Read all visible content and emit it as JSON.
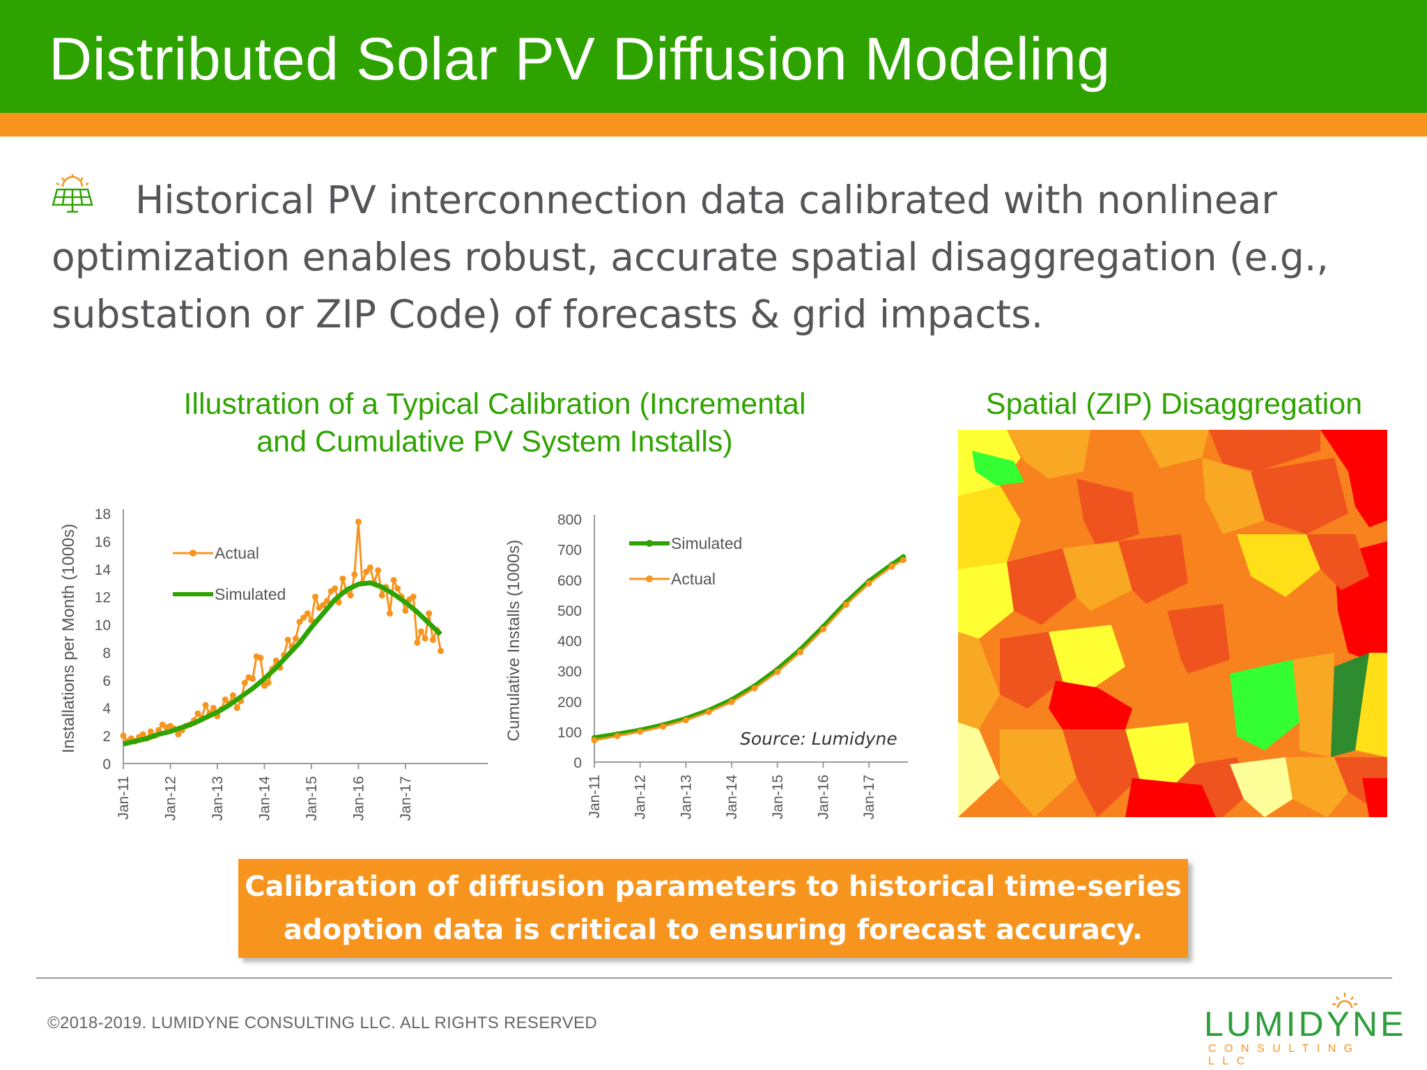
{
  "slide": {
    "title": "Distributed Solar PV Diffusion Modeling",
    "intro_text": "Historical PV interconnection data calibrated with nonlinear optimization enables robust, accurate spatial disaggregation (e.g., substation or ZIP Code) of forecasts & grid impacts.",
    "bullet_icon": "solar-panel-icon",
    "colors": {
      "title_bar": "#2ea300",
      "accent_orange": "#f7941d",
      "text_gray": "#555559",
      "heading_green": "#2ea300"
    }
  },
  "left_heading": {
    "line1": "Illustration of a Typical Calibration (Incremental",
    "line2": "and Cumulative PV System Installs)"
  },
  "right_heading": "Spatial (ZIP) Disaggregation",
  "source_note": "Source: Lumidyne",
  "callout": {
    "line1": "Calibration of diffusion parameters to historical time-series",
    "line2": "adoption data is critical to ensuring forecast accuracy."
  },
  "footer": {
    "copyright": "©2018-2019. LUMIDYNE CONSULTING LLC. ALL RIGHTS RESERVED",
    "logo_word": "LUMIDYNE",
    "logo_sub": "CONSULTING LLC"
  },
  "map": {
    "type": "choropleth",
    "legend": "none",
    "palette": [
      "#ff0000",
      "#f0541e",
      "#f7821e",
      "#f9a823",
      "#fedf18",
      "#ffff33",
      "#ffff99",
      "#33ff33",
      "#2e8b2e"
    ]
  },
  "chart_data": [
    {
      "type": "line",
      "title": "",
      "xlabel": "",
      "ylabel": "Installations per Month (1000s)",
      "ylim": [
        0,
        18
      ],
      "yticks": [
        0,
        2,
        4,
        6,
        8,
        10,
        12,
        14,
        16,
        18
      ],
      "xticks": [
        "Jan-11",
        "Jan-12",
        "Jan-13",
        "Jan-14",
        "Jan-15",
        "Jan-16",
        "Jan-17"
      ],
      "xlim": [
        2011.0,
        2018.75
      ],
      "legend": "upper-left",
      "grid": false,
      "series": [
        {
          "name": "Actual",
          "color": "#f7941d",
          "marker": true,
          "x": [
            2011.0,
            2011.083,
            2011.167,
            2011.25,
            2011.333,
            2011.417,
            2011.5,
            2011.583,
            2011.667,
            2011.75,
            2011.833,
            2011.917,
            2012.0,
            2012.083,
            2012.167,
            2012.25,
            2012.333,
            2012.417,
            2012.5,
            2012.583,
            2012.667,
            2012.75,
            2012.833,
            2012.917,
            2013.0,
            2013.083,
            2013.167,
            2013.25,
            2013.333,
            2013.417,
            2013.5,
            2013.583,
            2013.667,
            2013.75,
            2013.833,
            2013.917,
            2014.0,
            2014.083,
            2014.167,
            2014.25,
            2014.333,
            2014.417,
            2014.5,
            2014.583,
            2014.667,
            2014.75,
            2014.833,
            2014.917,
            2015.0,
            2015.083,
            2015.167,
            2015.25,
            2015.333,
            2015.417,
            2015.5,
            2015.583,
            2015.667,
            2015.75,
            2015.833,
            2015.917,
            2016.0,
            2016.083,
            2016.167,
            2016.25,
            2016.333,
            2016.417,
            2016.5,
            2016.583,
            2016.667,
            2016.75,
            2016.833,
            2016.917,
            2017.0,
            2017.083,
            2017.167,
            2017.25,
            2017.333,
            2017.417,
            2017.5,
            2017.583,
            2017.667,
            2017.75
          ],
          "values": [
            2.0,
            1.6,
            1.8,
            1.6,
            1.9,
            2.1,
            1.8,
            2.3,
            2.0,
            2.4,
            2.8,
            2.6,
            2.7,
            2.5,
            2.1,
            2.4,
            2.7,
            2.8,
            3.1,
            3.6,
            3.3,
            4.2,
            3.6,
            4.0,
            3.4,
            3.9,
            4.6,
            4.3,
            4.9,
            4.0,
            4.5,
            5.8,
            6.2,
            6.1,
            7.7,
            7.6,
            5.6,
            5.8,
            6.8,
            7.4,
            6.9,
            7.8,
            8.9,
            8.4,
            9.0,
            10.2,
            10.5,
            10.8,
            10.3,
            12.0,
            11.2,
            11.4,
            11.7,
            12.4,
            12.6,
            11.6,
            13.3,
            12.4,
            12.1,
            13.6,
            17.4,
            13.0,
            13.8,
            14.1,
            13.0,
            13.9,
            12.1,
            12.7,
            10.8,
            13.2,
            12.6,
            12.0,
            11.0,
            11.8,
            12.0,
            8.7,
            9.5,
            9.0,
            10.8,
            8.9,
            9.6,
            8.1
          ]
        },
        {
          "name": "Simulated",
          "color": "#2ea300",
          "marker": false,
          "x": [
            2011.0,
            2011.25,
            2011.5,
            2011.75,
            2012.0,
            2012.25,
            2012.5,
            2012.75,
            2013.0,
            2013.25,
            2013.5,
            2013.75,
            2014.0,
            2014.25,
            2014.5,
            2014.75,
            2015.0,
            2015.25,
            2015.5,
            2015.75,
            2016.0,
            2016.25,
            2016.5,
            2016.75,
            2017.0,
            2017.25,
            2017.5,
            2017.75
          ],
          "values": [
            1.4,
            1.6,
            1.8,
            2.1,
            2.3,
            2.6,
            2.9,
            3.3,
            3.7,
            4.2,
            4.8,
            5.4,
            6.1,
            6.9,
            7.8,
            8.7,
            9.8,
            10.8,
            11.8,
            12.5,
            12.9,
            13.0,
            12.7,
            12.2,
            11.6,
            10.9,
            10.1,
            9.3
          ]
        }
      ]
    },
    {
      "type": "line",
      "title": "",
      "xlabel": "",
      "ylabel": "Cumulative Installs (1000s)",
      "ylim": [
        0,
        800
      ],
      "yticks": [
        0,
        100,
        200,
        300,
        400,
        500,
        600,
        700,
        800
      ],
      "xticks": [
        "Jan-11",
        "Jan-12",
        "Jan-13",
        "Jan-14",
        "Jan-15",
        "Jan-16",
        "Jan-17"
      ],
      "xlim": [
        2011.0,
        2017.85
      ],
      "legend": "upper-left",
      "grid": false,
      "series": [
        {
          "name": "Simulated",
          "color": "#2ea300",
          "marker": true,
          "x": [
            2011.0,
            2011.5,
            2012.0,
            2012.5,
            2013.0,
            2013.5,
            2014.0,
            2014.5,
            2015.0,
            2015.5,
            2016.0,
            2016.5,
            2017.0,
            2017.5,
            2017.75
          ],
          "values": [
            80,
            92,
            105,
            122,
            143,
            170,
            205,
            250,
            305,
            370,
            445,
            525,
            595,
            650,
            675
          ]
        },
        {
          "name": "Actual",
          "color": "#f7941d",
          "marker": true,
          "x": [
            2011.0,
            2011.5,
            2012.0,
            2012.5,
            2013.0,
            2013.5,
            2014.0,
            2014.5,
            2015.0,
            2015.5,
            2016.0,
            2016.5,
            2017.0,
            2017.5,
            2017.75
          ],
          "values": [
            72,
            86,
            100,
            117,
            138,
            165,
            198,
            243,
            297,
            362,
            437,
            518,
            588,
            644,
            665
          ]
        }
      ]
    }
  ]
}
